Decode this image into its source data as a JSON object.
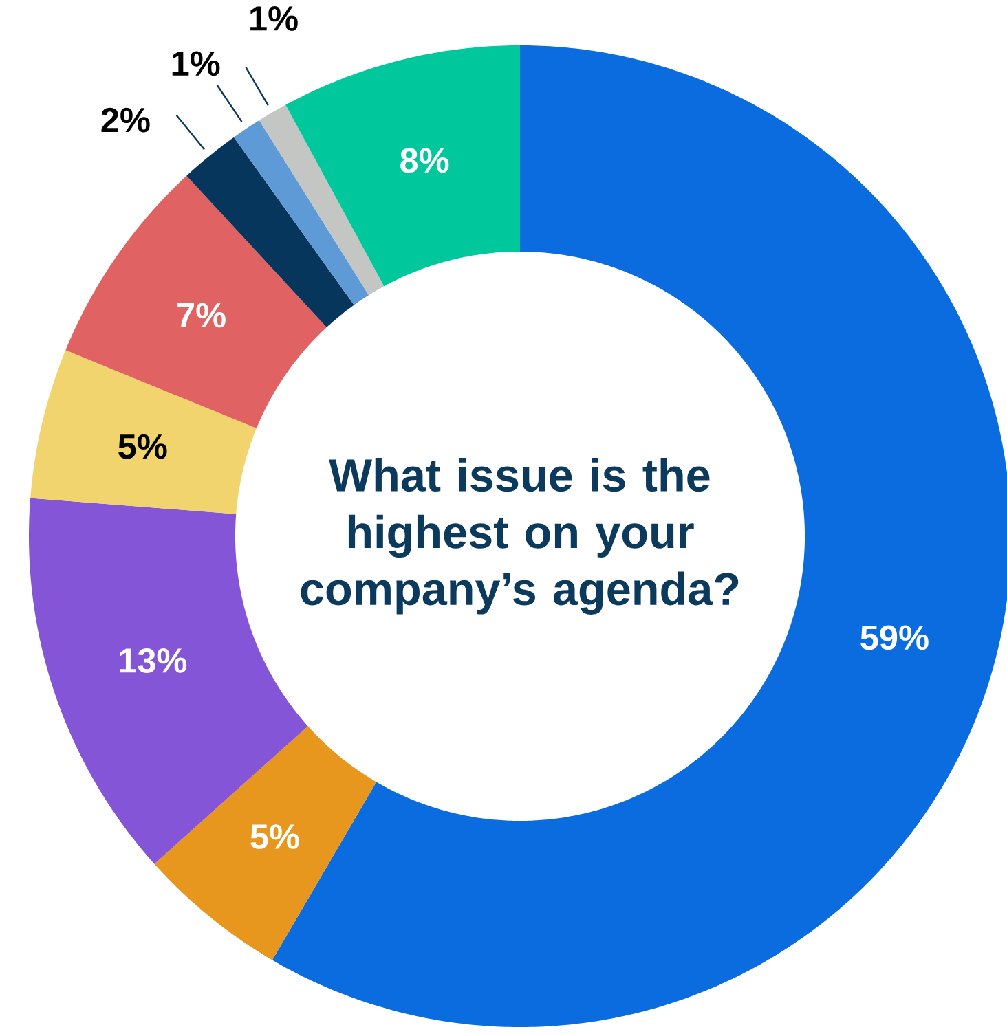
{
  "chart_data": {
    "type": "donut",
    "title": "What issue is the highest on your company’s agenda?",
    "categories": [
      null,
      null,
      null,
      null,
      null,
      null,
      null,
      null,
      null
    ],
    "values": [
      59,
      5,
      13,
      5,
      7,
      2,
      1,
      1,
      8
    ],
    "colors": [
      "#0a6cdf",
      "#e8971e",
      "#8455d6",
      "#f2d46e",
      "#e06262",
      "#07365c",
      "#5e9bd6",
      "#c4c6c4",
      "#00c89c"
    ],
    "value_labels": [
      "59%",
      "5%",
      "13%",
      "5%",
      "7%",
      "2%",
      "1%",
      "1%",
      "8%"
    ]
  }
}
